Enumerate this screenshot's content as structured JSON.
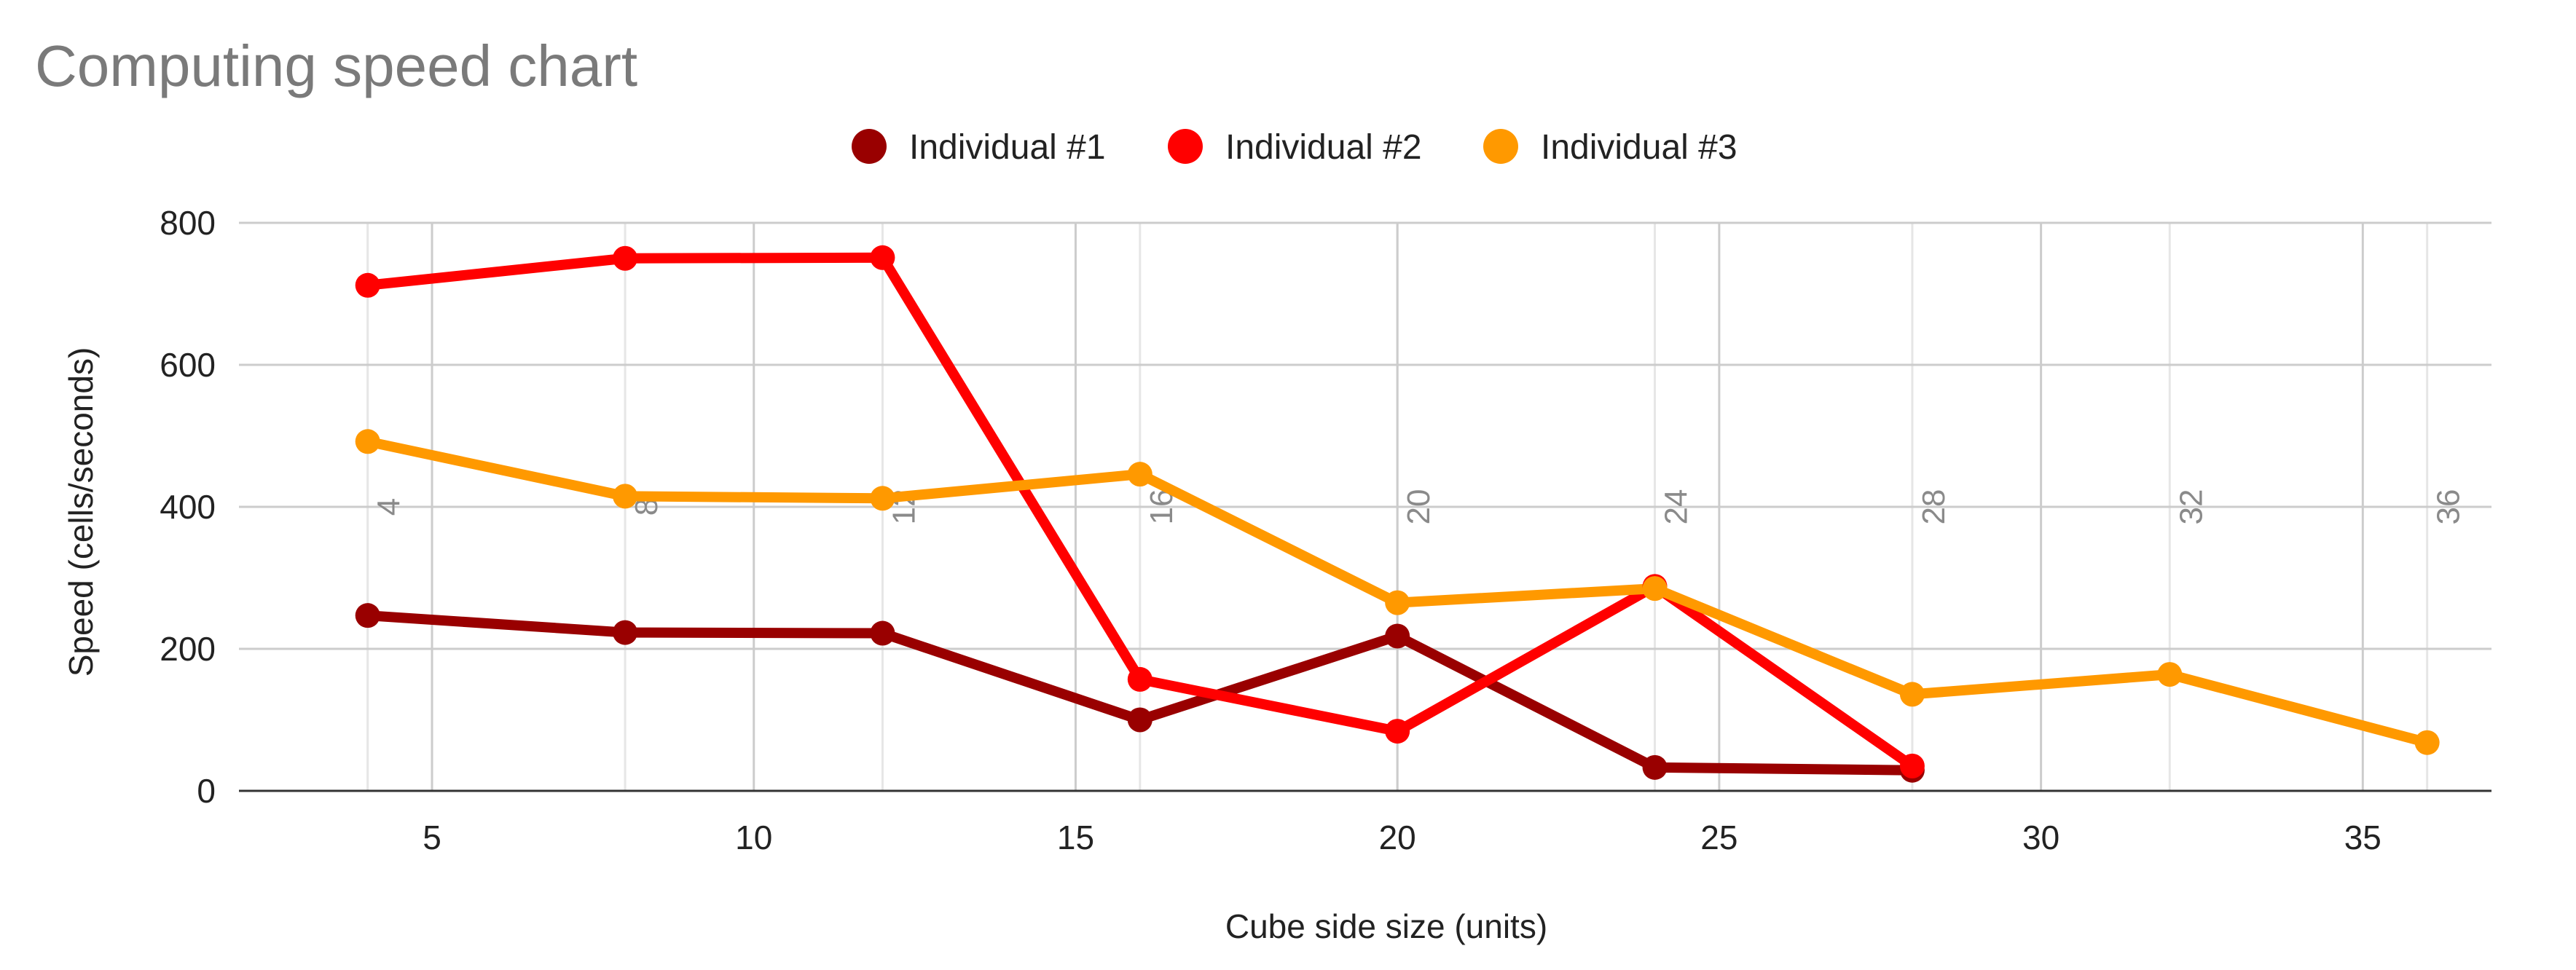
{
  "chart_data": {
    "type": "line",
    "title": "Computing speed chart",
    "xlabel": "Cube side size (units)",
    "ylabel": "Speed (cells/seconds)",
    "xlim": [
      2,
      37
    ],
    "ylim": [
      0,
      800
    ],
    "x_ticks": [
      5,
      10,
      15,
      20,
      25,
      30,
      35
    ],
    "y_ticks": [
      0,
      200,
      400,
      600,
      800
    ],
    "grid": true,
    "legend_position": "top-center",
    "category_annotations": [
      "4",
      "8",
      "12",
      "16",
      "20",
      "24",
      "28",
      "32",
      "36"
    ],
    "category_annotation_x": [
      4,
      8,
      12,
      16,
      20,
      24,
      28,
      32,
      36
    ],
    "category_annotation_y": 400,
    "series": [
      {
        "name": "Individual #1",
        "color": "#990000",
        "x": [
          4,
          8,
          12,
          16,
          20,
          24,
          28
        ],
        "values": [
          247,
          223,
          222,
          100,
          218,
          33,
          29
        ]
      },
      {
        "name": "Individual #2",
        "color": "#ff0000",
        "x": [
          4,
          8,
          12,
          16,
          20,
          24,
          28
        ],
        "values": [
          712,
          750,
          751,
          157,
          84,
          288,
          35
        ]
      },
      {
        "name": "Individual #3",
        "color": "#ff9900",
        "x": [
          4,
          8,
          12,
          16,
          20,
          24,
          28,
          32,
          36
        ],
        "values": [
          492,
          415,
          412,
          446,
          265,
          285,
          136,
          164,
          68
        ]
      }
    ]
  }
}
